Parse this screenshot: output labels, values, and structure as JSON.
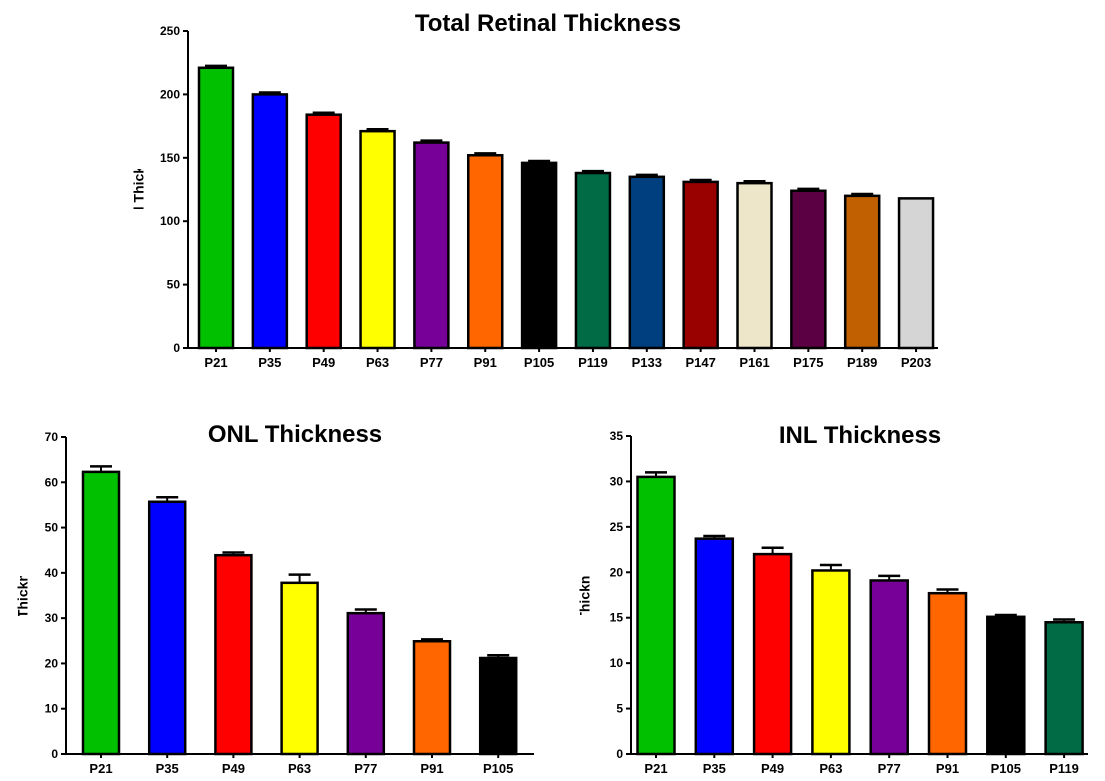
{
  "chart_data": [
    {
      "type": "bar",
      "title": "Total Retinal Thickness",
      "ylabel": "Average Retinal Thickness (microns)",
      "xlabel": "",
      "ylim": [
        0,
        250
      ],
      "yticks": [
        0,
        50,
        100,
        150,
        200,
        250
      ],
      "grid": false,
      "categories": [
        "P21",
        "P35",
        "P49",
        "P63",
        "P77",
        "P91",
        "P105",
        "P119",
        "P133",
        "P147",
        "P161",
        "P175",
        "P189",
        "P203"
      ],
      "values": [
        221,
        200,
        184,
        171,
        162,
        152,
        146,
        138,
        135,
        131,
        130,
        124,
        120,
        118
      ],
      "errors": [
        1.5,
        1.5,
        1.5,
        1.5,
        1.5,
        1.5,
        1.5,
        1.5,
        1.5,
        1.5,
        1.5,
        1.5,
        1.5,
        0
      ],
      "colors": [
        "#00C000",
        "#0000FF",
        "#FF0000",
        "#FFFF00",
        "#770099",
        "#FF6600",
        "#000000",
        "#006B45",
        "#003F7F",
        "#990000",
        "#EDE6C8",
        "#5C0044",
        "#C06000",
        "#D5D5D5"
      ]
    },
    {
      "type": "bar",
      "title": "ONL Thickness",
      "ylabel": "Average ONL Thickness (microns)",
      "xlabel": "",
      "ylim": [
        0,
        70
      ],
      "yticks": [
        0,
        10,
        20,
        30,
        40,
        50,
        60,
        70
      ],
      "grid": false,
      "categories": [
        "P21",
        "P35",
        "P49",
        "P63",
        "P77",
        "P91",
        "P105"
      ],
      "values": [
        62.3,
        55.7,
        43.9,
        37.8,
        31.1,
        24.9,
        21.2
      ],
      "errors": [
        1.2,
        1.0,
        0.6,
        1.8,
        0.8,
        0.4,
        0.6
      ],
      "colors": [
        "#00C000",
        "#0000FF",
        "#FF0000",
        "#FFFF00",
        "#770099",
        "#FF6600",
        "#000000"
      ]
    },
    {
      "type": "bar",
      "title": "INL Thickness",
      "ylabel": "Average INL Thickness (microns)",
      "xlabel": "",
      "ylim": [
        0,
        35
      ],
      "yticks": [
        0,
        5,
        10,
        15,
        20,
        25,
        30,
        35
      ],
      "grid": false,
      "categories": [
        "P21",
        "P35",
        "P49",
        "P63",
        "P77",
        "P91",
        "P105",
        "P119"
      ],
      "values": [
        30.5,
        23.7,
        22.0,
        20.2,
        19.1,
        17.7,
        15.1,
        14.5
      ],
      "errors": [
        0.5,
        0.3,
        0.7,
        0.6,
        0.5,
        0.4,
        0.2,
        0.3
      ],
      "colors": [
        "#00C000",
        "#0000FF",
        "#FF0000",
        "#FFFF00",
        "#770099",
        "#FF6600",
        "#000000",
        "#006B45"
      ]
    }
  ]
}
